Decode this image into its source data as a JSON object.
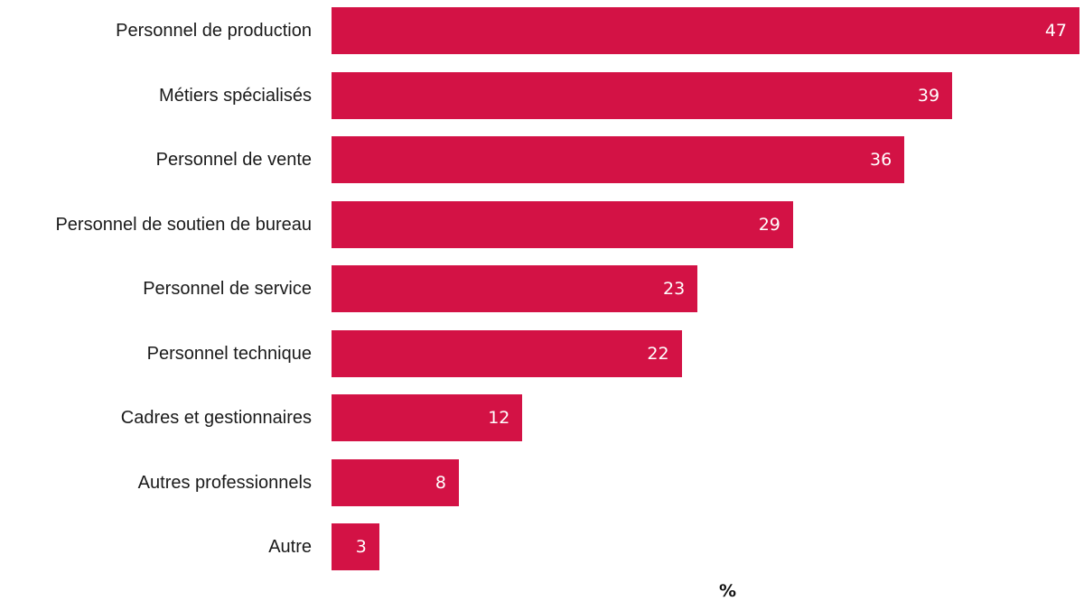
{
  "chart_data": {
    "type": "bar",
    "orientation": "horizontal",
    "categories": [
      "Personnel de production",
      "Métiers spécialisés",
      "Personnel de vente",
      "Personnel de soutien de bureau",
      "Personnel de service",
      "Personnel technique",
      "Cadres et gestionnaires",
      "Autres professionnels",
      "Autre"
    ],
    "values": [
      47,
      39,
      36,
      29,
      23,
      22,
      12,
      8,
      3
    ],
    "xlabel": "%",
    "ylabel": "",
    "title": "",
    "xlim": [
      0,
      47
    ],
    "grid": false,
    "legend": "none",
    "data_labels": "inside-end",
    "colors": {
      "bar": "#d31245",
      "value_label": "#ffffff",
      "category_label": "#1a1a1a"
    }
  }
}
